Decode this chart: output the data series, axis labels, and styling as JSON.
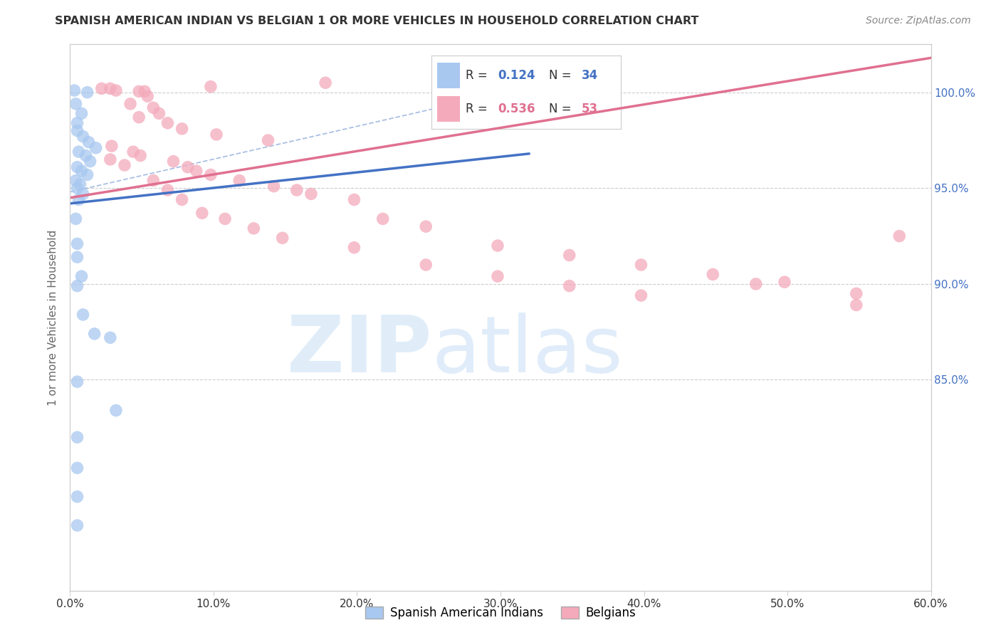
{
  "title": "SPANISH AMERICAN INDIAN VS BELGIAN 1 OR MORE VEHICLES IN HOUSEHOLD CORRELATION CHART",
  "source": "Source: ZipAtlas.com",
  "ylabel": "1 or more Vehicles in Household",
  "legend_r1": "0.124",
  "legend_n1": "34",
  "legend_r2": "0.536",
  "legend_n2": "53",
  "color_blue": "#A8C8F0",
  "color_pink": "#F4AABB",
  "color_blue_line": "#4472C4",
  "color_pink_line": "#E07090",
  "color_blue_text": "#4472C4",
  "color_pink_text": "#E07090",
  "blue_x": [
    0.3,
    1.2,
    0.4,
    0.8,
    0.5,
    0.5,
    0.9,
    1.3,
    1.8,
    0.6,
    1.1,
    1.4,
    0.5,
    0.8,
    1.2,
    0.4,
    0.7,
    0.5,
    0.9,
    0.6,
    0.4,
    0.5,
    0.5,
    0.8,
    0.5,
    0.9,
    1.7,
    2.8,
    0.5,
    3.2,
    0.5,
    0.5,
    0.5,
    0.5
  ],
  "blue_y": [
    100.1,
    100.0,
    99.4,
    98.9,
    98.4,
    98.0,
    97.7,
    97.4,
    97.1,
    96.9,
    96.7,
    96.4,
    96.1,
    95.9,
    95.7,
    95.4,
    95.2,
    95.0,
    94.7,
    94.4,
    93.4,
    92.1,
    91.4,
    90.4,
    89.9,
    88.4,
    87.4,
    87.2,
    84.9,
    83.4,
    82.0,
    80.4,
    78.9,
    77.4
  ],
  "pink_x": [
    2.2,
    3.2,
    4.8,
    5.2,
    5.4,
    2.8,
    4.2,
    5.8,
    6.2,
    9.8,
    4.8,
    6.8,
    7.8,
    10.2,
    13.8,
    17.8,
    2.9,
    4.4,
    4.9,
    7.2,
    8.2,
    8.8,
    9.8,
    11.8,
    14.2,
    15.8,
    16.8,
    19.8,
    21.8,
    24.8,
    29.8,
    34.8,
    39.8,
    44.8,
    47.8,
    49.8,
    54.8,
    57.8,
    2.8,
    3.8,
    5.8,
    6.8,
    7.8,
    9.2,
    10.8,
    12.8,
    14.8,
    19.8,
    24.8,
    29.8,
    34.8,
    39.8,
    54.8
  ],
  "pink_y": [
    100.2,
    100.1,
    100.05,
    100.05,
    99.8,
    100.2,
    99.4,
    99.2,
    98.9,
    100.3,
    98.7,
    98.4,
    98.1,
    97.8,
    97.5,
    100.5,
    97.2,
    96.9,
    96.7,
    96.4,
    96.1,
    95.9,
    95.7,
    95.4,
    95.1,
    94.9,
    94.7,
    94.4,
    93.4,
    93.0,
    92.0,
    91.5,
    91.0,
    90.5,
    90.0,
    90.1,
    89.5,
    92.5,
    96.5,
    96.2,
    95.4,
    94.9,
    94.4,
    93.7,
    93.4,
    92.9,
    92.4,
    91.9,
    91.0,
    90.4,
    89.9,
    89.4,
    88.9
  ],
  "xmin": 0.0,
  "xmax": 60.0,
  "ymin": 74.0,
  "ymax": 102.5,
  "blue_line_x": [
    0.0,
    32.0
  ],
  "blue_line_y": [
    94.2,
    96.8
  ],
  "pink_line_x": [
    0.0,
    60.0
  ],
  "pink_line_y": [
    94.5,
    101.8
  ],
  "dash_line_x": [
    0.0,
    35.0
  ],
  "dash_line_y": [
    94.8,
    100.8
  ],
  "yticks": [
    85.0,
    90.0,
    95.0,
    100.0
  ],
  "xticks": [
    0.0,
    10.0,
    20.0,
    30.0,
    40.0,
    50.0,
    60.0
  ]
}
